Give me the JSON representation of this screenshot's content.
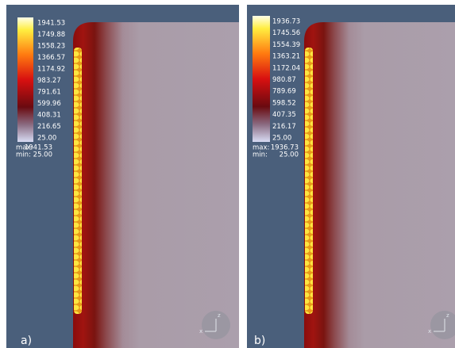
{
  "panels": [
    {
      "label": "a)",
      "legend": [
        "1941.53",
        "1749.88",
        "1558.23",
        "1366.57",
        "1174.92",
        "983.27",
        "791.61",
        "599.96",
        "408.31",
        "216.65",
        "25.00"
      ],
      "max_label": "max:",
      "max": "1941.53",
      "min_label": "min:",
      "min": "25.00",
      "axis_z": "z",
      "axis_x": "x"
    },
    {
      "label": "b)",
      "legend": [
        "1936.73",
        "1745.56",
        "1554.39",
        "1363.21",
        "1172.04",
        "980.87",
        "789.69",
        "598.52",
        "407.35",
        "216.17",
        "25.00"
      ],
      "max_label": "max:",
      "max": "1936.73",
      "min_label": "min:",
      "min": "25.00",
      "axis_z": "z",
      "axis_x": "x"
    }
  ]
}
